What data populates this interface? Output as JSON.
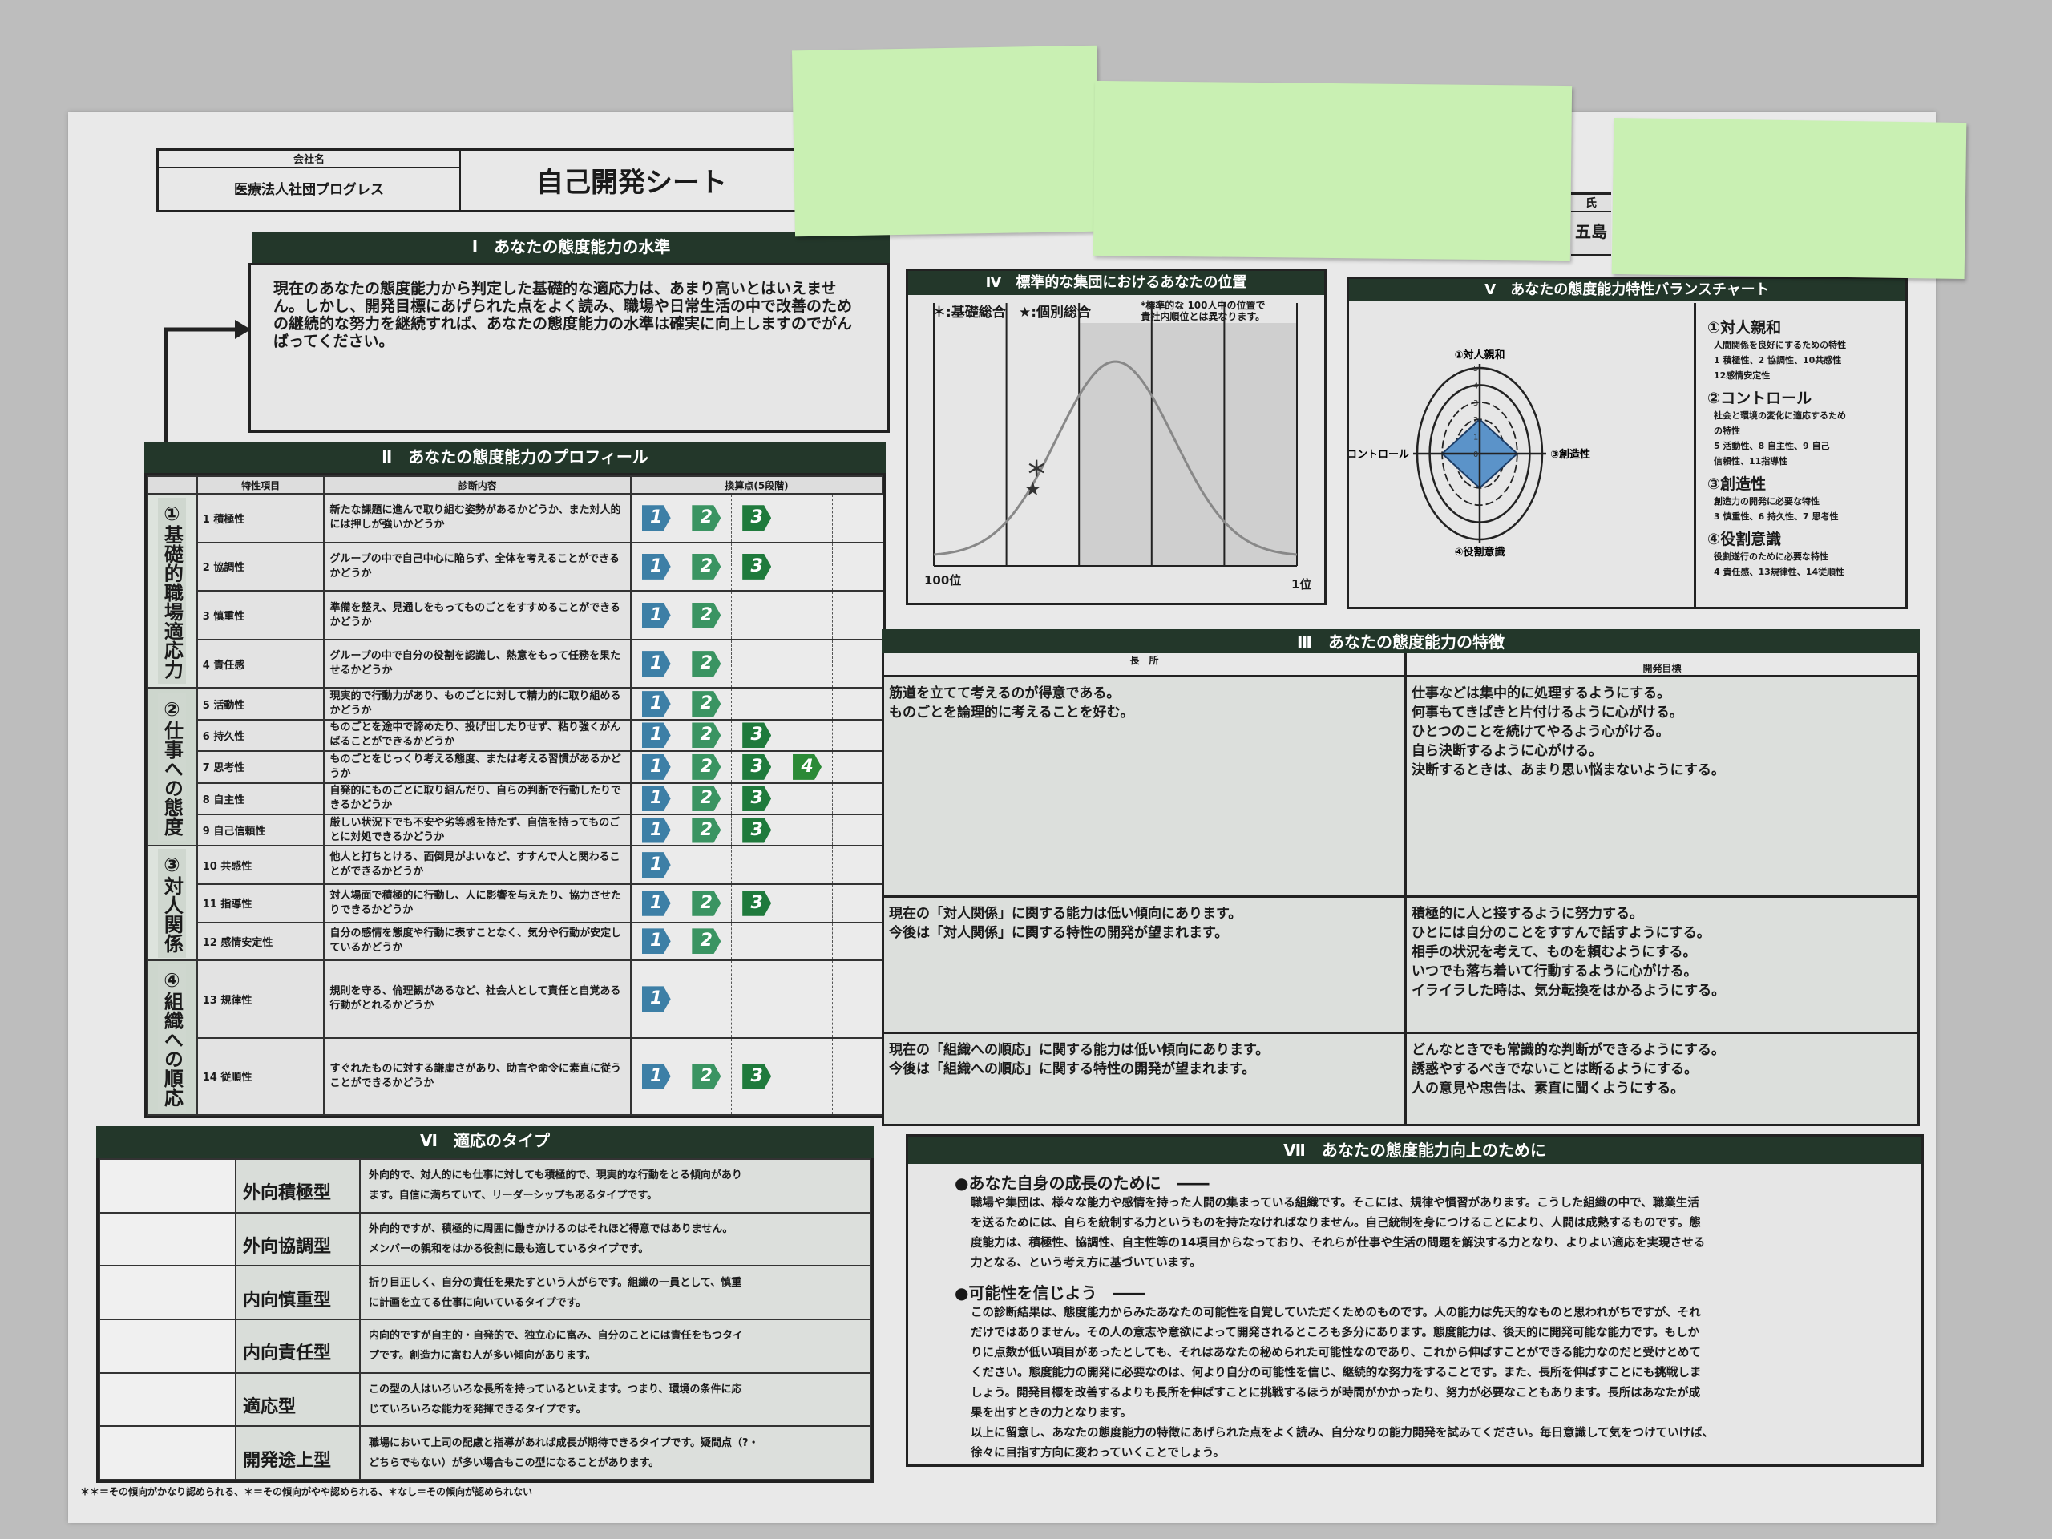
{
  "header": {
    "company_label": "会社名",
    "company_name": "医療法人社団プログレス",
    "title": "自己開発シート",
    "name_label": "氏",
    "name_value": "五島"
  },
  "section1": {
    "title": "Ⅰ　あなたの態度能力の水準",
    "text": "現在のあなたの態度能力から判定した基礎的な適応力は、あまり高いとはいえません。しかし、開発目標にあげられた点をよく読み、職場や日常生活の中で改善のための継続的な努力を継続すれば、あなたの態度能力の水準は確実に向上しますのでがんばってください。"
  },
  "section2": {
    "title": "Ⅱ　あなたの態度能力のプロフィール",
    "col_item": "特性項目",
    "col_desc": "診断内容",
    "col_score": "換算点(5段階)",
    "max_score": 5,
    "categories": [
      {
        "label": "①基礎的職場適応力",
        "rows": 4
      },
      {
        "label": "②仕事への態度",
        "rows": 5
      },
      {
        "label": "③対人関係",
        "rows": 3
      },
      {
        "label": "④組織への順応",
        "rows": 2
      }
    ],
    "rows": [
      {
        "item": "1 積極性",
        "desc": "新たな課題に進んで取り組む姿勢があるかどうか、また対人的には押しが強いかどうか",
        "score": 3
      },
      {
        "item": "2 協調性",
        "desc": "グループの中で自己中心に陥らず、全体を考えることができるかどうか",
        "score": 3
      },
      {
        "item": "3 慎重性",
        "desc": "準備を整え、見通しをもってものごとをすすめることができるかどうか",
        "score": 2
      },
      {
        "item": "4 責任感",
        "desc": "グループの中で自分の役割を認識し、熱意をもって任務を果たせるかどうか",
        "score": 2
      },
      {
        "item": "5 活動性",
        "desc": "現実的で行動力があり、ものごとに対して精力的に取り組めるかどうか",
        "score": 2
      },
      {
        "item": "6 持久性",
        "desc": "ものごとを途中で諦めたり、投げ出したりせず、粘り強くがんばることができるかどうか",
        "score": 3
      },
      {
        "item": "7 思考性",
        "desc": "ものごとをじっくり考える態度、または考える習慣があるかどうか",
        "score": 4
      },
      {
        "item": "8 自主性",
        "desc": "自発的にものごとに取り組んだり、自らの判断で行動したりできるかどうか",
        "score": 3
      },
      {
        "item": "9 自己信頼性",
        "desc": "厳しい状況下でも不安や劣等感を持たず、自信を持ってものごとに対処できるかどうか",
        "score": 3
      },
      {
        "item": "10 共感性",
        "desc": "他人と打ちとける、面倒見がよいなど、すすんで人と関わることができるかどうか",
        "score": 1
      },
      {
        "item": "11 指導性",
        "desc": "対人場面で積極的に行動し、人に影響を与えたり、協力させたりできるかどうか",
        "score": 3
      },
      {
        "item": "12 感情安定性",
        "desc": "自分の感情を態度や行動に表すことなく、気分や行動が安定しているかどうか",
        "score": 2
      },
      {
        "item": "13 規律性",
        "desc": "規則を守る、倫理観があるなど、社会人として責任と自覚ある行動がとれるかどうか",
        "score": 1
      },
      {
        "item": "14 従順性",
        "desc": "すぐれたものに対する謙虚さがあり、助言や命令に素直に従うことができるかどうか",
        "score": 3
      }
    ],
    "badge_colors": [
      "#3d7fa6",
      "#3a9462",
      "#1f7a3c",
      "#2b8a36",
      "#2b8a36"
    ]
  },
  "section3": {
    "title": "Ⅲ　あなたの態度能力の特徴",
    "col_strength": "長　所",
    "col_goal": "開発目標",
    "rows": [
      {
        "strength": [
          "筋道を立てて考えるのが得意である。",
          "ものごとを論理的に考えることを好む。"
        ],
        "goal": [
          "仕事などは集中的に処理するようにする。",
          "何事もてきぱきと片付けるように心がける。",
          "ひとつのことを続けてやるよう心がける。",
          "自ら決断するように心がける。",
          "決断するときは、あまり思い悩まないようにする。"
        ]
      },
      {
        "strength": [
          "現在の「対人関係」に関する能力は低い傾向にあります。",
          "今後は「対人関係」に関する特性の開発が望まれます。"
        ],
        "goal": [
          "積極的に人と接するように努力する。",
          "ひとには自分のことをすすんで話すようにする。",
          "相手の状況を考えて、ものを頼むようにする。",
          "いつでも落ち着いて行動するように心がける。",
          "イライラした時は、気分転換をはかるようにする。"
        ]
      },
      {
        "strength": [
          "現在の「組織への順応」に関する能力は低い傾向にあります。",
          "今後は「組織への順応」に関する特性の開発が望まれます。"
        ],
        "goal": [
          "どんなときでも常識的な判断ができるようにする。",
          "誘惑やするべきでないことは断るようにする。",
          "人の意見や忠告は、素直に聞くようにする。"
        ]
      }
    ]
  },
  "section4": {
    "title": "Ⅳ　標準的な集団におけるあなたの位置",
    "legend_basic": "＊:基礎総合",
    "legend_individual": "★:個別総合",
    "note1": "*標準的な 100人中の位置で",
    "note2": "貴社内順位とは異なります。",
    "x_left": "100位",
    "x_right": "1位",
    "basic_rank": 72,
    "individual_rank": 73
  },
  "section5": {
    "title": "Ⅴ　あなたの態度能力特性バランスチャート",
    "axes": [
      {
        "label": "①対人親和",
        "value": 2
      },
      {
        "label": "③創造性",
        "value": 3
      },
      {
        "label": "④役割意識",
        "value": 2
      },
      {
        "label": "②コントロール",
        "value": 3
      }
    ],
    "ring_labels": [
      "0",
      "1",
      "2",
      "3",
      "4",
      "5"
    ],
    "fill_color": "#5b93c9",
    "legend": [
      {
        "title": "①対人親和",
        "lines": [
          "人間関係を良好にするための特性",
          "1 積極性、2 協調性、10共感性",
          "12感情安定性"
        ]
      },
      {
        "title": "②コントロール",
        "lines": [
          "社会と環境の変化に適応するため",
          "の特性",
          "5 活動性、8 自主性、9 自己",
          "信頼性、11指導性"
        ]
      },
      {
        "title": "③創造性",
        "lines": [
          "創造力の開発に必要な特性",
          "3 慎重性、6 持久性、7 思考性"
        ]
      },
      {
        "title": "④役割意識",
        "lines": [
          "役割遂行のために必要な特性",
          "4 責任感、13規律性、14従順性"
        ]
      }
    ]
  },
  "section6": {
    "title": "Ⅵ　適応のタイプ",
    "rows": [
      {
        "type": "外向積極型",
        "desc": [
          "外向的で、対人的にも仕事に対しても積極的で、現実的な行動をとる傾向があり",
          "ます。自信に満ちていて、リーダーシップもあるタイプです。"
        ]
      },
      {
        "type": "外向協調型",
        "desc": [
          "外向的ですが、積極的に周囲に働きかけるのはそれほど得意ではありません。",
          "メンバーの親和をはかる役割に最も適しているタイプです。"
        ]
      },
      {
        "type": "内向慎重型",
        "desc": [
          "折り目正しく、自分の責任を果たすという人がらです。組織の一員として、慎重",
          "に計画を立てる仕事に向いているタイプです。"
        ]
      },
      {
        "type": "内向責任型",
        "desc": [
          "内向的ですが自主的・自発的で、独立心に富み、自分のことには責任をもつタイ",
          "プです。創造力に富む人が多い傾向があります。"
        ]
      },
      {
        "type": "適応型",
        "desc": [
          "この型の人はいろいろな長所を持っているといえます。つまり、環境の条件に応",
          "じていろいろな能力を発揮できるタイプです。"
        ]
      },
      {
        "type": "開発途上型",
        "desc": [
          "職場において上司の配慮と指導があれば成長が期待できるタイプです。疑問点（?・",
          "どちらでもない）が多い場合もこの型になることがあります。"
        ]
      }
    ],
    "footnote": "＊＊＝その傾向がかなり認められる、＊＝その傾向がやや認められる、＊なし＝その傾向が認められない"
  },
  "section7": {
    "title": "Ⅶ　あなたの態度能力向上のために",
    "h1": "●あなた自身の成長のために　――",
    "p1": [
      "職場や集団は、様々な能力や感情を持った人間の集まっている組織です。そこには、規律や慣習があります。こうした組織の中で、職業生活",
      "を送るためには、自らを統制する力というものを持たなければなりません。自己統制を身につけることにより、人間は成熟するものです。態",
      "度能力は、積極性、協調性、自主性等の14項目からなっており、それらが仕事や生活の問題を解決する力となり、よりよい適応を実現させる",
      "力となる、という考え方に基づいています。"
    ],
    "h2": "●可能性を信じよう　――",
    "p2": [
      "この診断結果は、態度能力からみたあなたの可能性を自覚していただくためのものです。人の能力は先天的なものと思われがちですが、それ",
      "だけではありません。その人の意志や意欲によって開発されるところも多分にあります。態度能力は、後天的に開発可能な能力です。もしか",
      "りに点数が低い項目があったとしても、それはあなたの秘められた可能性なのであり、これから伸ばすことができる能力なのだと受けとめて",
      "ください。態度能力の開発に必要なのは、何より自分の可能性を信じ、継続的な努力をすることです。また、長所を伸ばすことにも挑戦しま",
      "しょう。開発目標を改善するよりも長所を伸ばすことに挑戦するほうが時間がかかったり、努力が必要なこともあります。長所はあなたが成",
      "果を出すときの力となります。",
      "以上に留意し、あなたの態度能力の特徴にあげられた点をよく読み、自分なりの能力開発を試みてください。毎日意識して気をつけていけば、",
      "徐々に目指す方向に変わっていくことでしょう。"
    ]
  }
}
